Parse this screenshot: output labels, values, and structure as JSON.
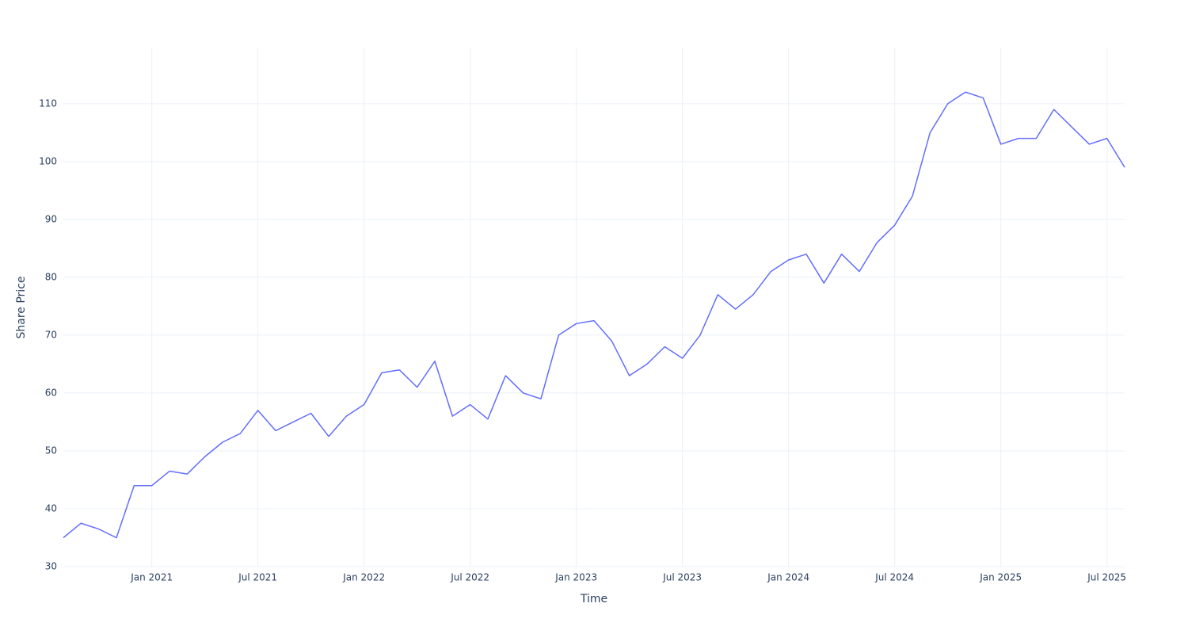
{
  "chart_data": {
    "type": "line",
    "x_label": "Time",
    "y_label": "Share Price",
    "x": [
      "2020-08",
      "2020-09",
      "2020-10",
      "2020-11",
      "2020-12",
      "2021-01",
      "2021-02",
      "2021-03",
      "2021-04",
      "2021-05",
      "2021-06",
      "2021-07",
      "2021-08",
      "2021-09",
      "2021-10",
      "2021-11",
      "2021-12",
      "2022-01",
      "2022-02",
      "2022-03",
      "2022-04",
      "2022-05",
      "2022-06",
      "2022-07",
      "2022-08",
      "2022-09",
      "2022-10",
      "2022-11",
      "2022-12",
      "2023-01",
      "2023-02",
      "2023-03",
      "2023-04",
      "2023-05",
      "2023-06",
      "2023-07",
      "2023-08",
      "2023-09",
      "2023-10",
      "2023-11",
      "2023-12",
      "2024-01",
      "2024-02",
      "2024-03",
      "2024-04",
      "2024-05",
      "2024-06",
      "2024-07",
      "2024-08",
      "2024-09",
      "2024-10",
      "2024-11",
      "2024-12",
      "2025-01",
      "2025-02",
      "2025-03",
      "2025-04",
      "2025-05",
      "2025-06",
      "2025-07",
      "2025-08"
    ],
    "series": [
      {
        "name": "Share Price",
        "color": "#636efa",
        "values": [
          35,
          37.5,
          36.5,
          35,
          44,
          44,
          46.5,
          46,
          49,
          51.5,
          53,
          57,
          53.5,
          55,
          56.5,
          52.5,
          56,
          58,
          63.5,
          64,
          61,
          65.5,
          56,
          58,
          55.5,
          63,
          60,
          59,
          70,
          72,
          72.5,
          69,
          63,
          65,
          68,
          66,
          70,
          77,
          74.5,
          77,
          81,
          83,
          84,
          79,
          84,
          81,
          86,
          89,
          94,
          105,
          110,
          112,
          111,
          103,
          104,
          104,
          109,
          106,
          103,
          104,
          99
        ]
      }
    ],
    "xlim": [
      "2020-08",
      "2025-08"
    ],
    "xticks": [
      {
        "value": "2021-01",
        "label": "Jan 2021"
      },
      {
        "value": "2021-07",
        "label": "Jul 2021"
      },
      {
        "value": "2022-01",
        "label": "Jan 2022"
      },
      {
        "value": "2022-07",
        "label": "Jul 2022"
      },
      {
        "value": "2023-01",
        "label": "Jan 2023"
      },
      {
        "value": "2023-07",
        "label": "Jul 2023"
      },
      {
        "value": "2024-01",
        "label": "Jan 2024"
      },
      {
        "value": "2024-07",
        "label": "Jul 2024"
      },
      {
        "value": "2025-01",
        "label": "Jan 2025"
      },
      {
        "value": "2025-07",
        "label": "Jul 2025"
      }
    ],
    "ylim": [
      30,
      119.7
    ],
    "yticks": [
      30,
      40,
      50,
      60,
      70,
      80,
      90,
      100,
      110
    ],
    "grid": true
  }
}
